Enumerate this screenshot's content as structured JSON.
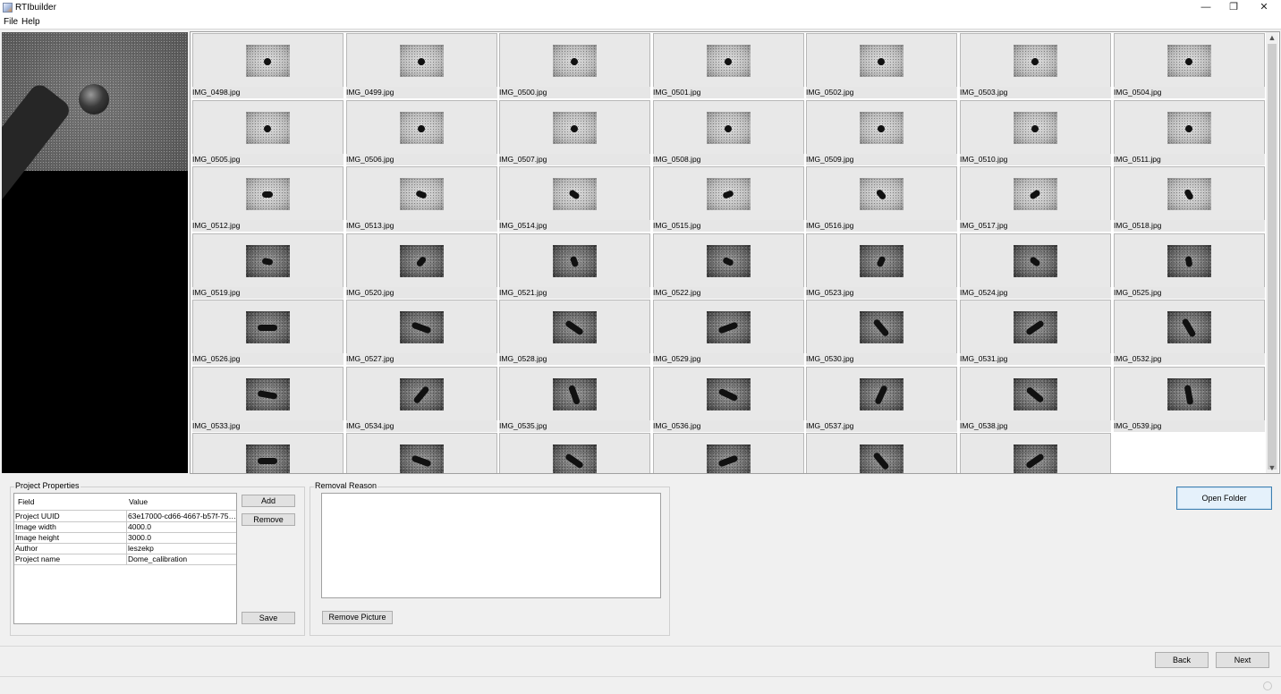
{
  "window": {
    "title": "RTIbuilder",
    "controls": {
      "minimize": "—",
      "restore": "❐",
      "close": "✕"
    }
  },
  "menu": [
    "File",
    "Help"
  ],
  "images": [
    "IMG_0498.jpg",
    "IMG_0499.jpg",
    "IMG_0500.jpg",
    "IMG_0501.jpg",
    "IMG_0502.jpg",
    "IMG_0503.jpg",
    "IMG_0504.jpg",
    "IMG_0505.jpg",
    "IMG_0506.jpg",
    "IMG_0507.jpg",
    "IMG_0508.jpg",
    "IMG_0509.jpg",
    "IMG_0510.jpg",
    "IMG_0511.jpg",
    "IMG_0512.jpg",
    "IMG_0513.jpg",
    "IMG_0514.jpg",
    "IMG_0515.jpg",
    "IMG_0516.jpg",
    "IMG_0517.jpg",
    "IMG_0518.jpg",
    "IMG_0519.jpg",
    "IMG_0520.jpg",
    "IMG_0521.jpg",
    "IMG_0522.jpg",
    "IMG_0523.jpg",
    "IMG_0524.jpg",
    "IMG_0525.jpg",
    "IMG_0526.jpg",
    "IMG_0527.jpg",
    "IMG_0528.jpg",
    "IMG_0529.jpg",
    "IMG_0530.jpg",
    "IMG_0531.jpg",
    "IMG_0532.jpg",
    "IMG_0533.jpg",
    "IMG_0534.jpg",
    "IMG_0535.jpg",
    "IMG_0536.jpg",
    "IMG_0537.jpg",
    "IMG_0538.jpg",
    "IMG_0539.jpg"
  ],
  "partial_row_thumbnails": 6,
  "scrollbar": {
    "up": "▲",
    "down": "▼"
  },
  "project_properties": {
    "title": "Project Properties",
    "columns": [
      "Field",
      "Value"
    ],
    "rows": [
      [
        "Project UUID",
        "63e17000-cd66-4667-b57f-759..."
      ],
      [
        "Image width",
        "4000.0"
      ],
      [
        "Image height",
        "3000.0"
      ],
      [
        "Author",
        "leszekp"
      ],
      [
        "Project name",
        "Dome_calibration"
      ]
    ],
    "buttons": {
      "add": "Add",
      "remove": "Remove",
      "save": "Save"
    }
  },
  "removal": {
    "title": "Removal Reason",
    "text": "",
    "button": "Remove Picture"
  },
  "open_folder": "Open Folder",
  "nav": {
    "back": "Back",
    "next": "Next"
  }
}
